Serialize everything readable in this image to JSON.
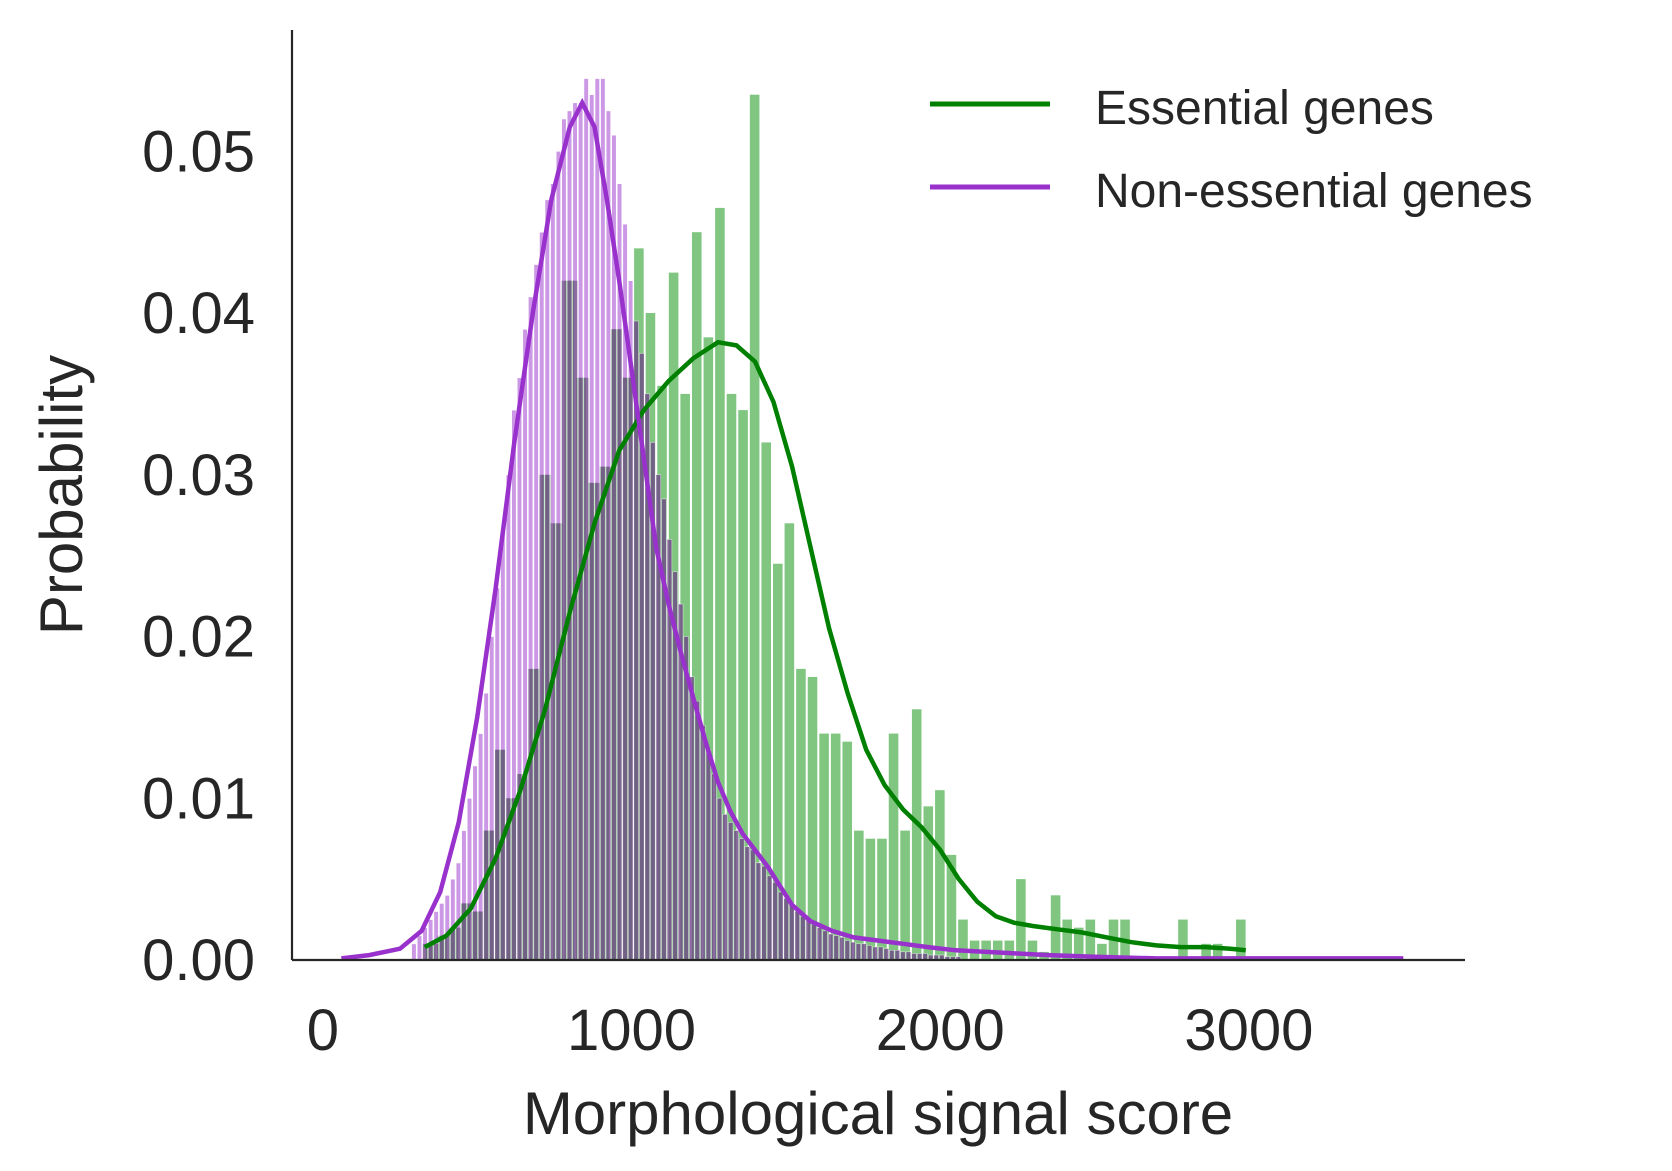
{
  "chart_data": {
    "type": "bar",
    "xlabel": "Morphological signal score",
    "ylabel": "Probability",
    "xlim": [
      -100,
      3700
    ],
    "ylim": [
      0,
      0.0575
    ],
    "xticks": [
      0,
      1000,
      2000,
      3000
    ],
    "xtick_labels": [
      "0",
      "1000",
      "2000",
      "3000"
    ],
    "yticks": [
      0,
      0.01,
      0.02,
      0.03,
      0.04,
      0.05
    ],
    "ytick_labels": [
      "0.00",
      "0.01",
      "0.02",
      "0.03",
      "0.04",
      "0.05"
    ],
    "grid": false,
    "legend_position": "top-right",
    "series": [
      {
        "name": "Essential genes",
        "color": "#008000",
        "bar_color": "#2ca02c",
        "bin_width": 37.5,
        "hist": [
          [
            330,
            0.001
          ],
          [
            367.5,
            0.0015
          ],
          [
            405,
            0.002
          ],
          [
            442.5,
            0.0035
          ],
          [
            480,
            0.003
          ],
          [
            517.5,
            0.008
          ],
          [
            555,
            0.013
          ],
          [
            592.5,
            0.01
          ],
          [
            630,
            0.0115
          ],
          [
            667.5,
            0.018
          ],
          [
            705,
            0.03
          ],
          [
            742.5,
            0.027
          ],
          [
            780,
            0.042
          ],
          [
            817.5,
            0.036
          ],
          [
            855,
            0.0295
          ],
          [
            892.5,
            0.0305
          ],
          [
            930,
            0.039
          ],
          [
            967.5,
            0.036
          ],
          [
            1005,
            0.044
          ],
          [
            1042.5,
            0.04
          ],
          [
            1080,
            0.0355
          ],
          [
            1117.5,
            0.0425
          ],
          [
            1155,
            0.035
          ],
          [
            1192.5,
            0.045
          ],
          [
            1230,
            0.0385
          ],
          [
            1267.5,
            0.0465
          ],
          [
            1305,
            0.035
          ],
          [
            1342.5,
            0.034
          ],
          [
            1380,
            0.0535
          ],
          [
            1417.5,
            0.032
          ],
          [
            1455,
            0.0245
          ],
          [
            1492.5,
            0.027
          ],
          [
            1530,
            0.018
          ],
          [
            1567.5,
            0.0175
          ],
          [
            1605,
            0.014
          ],
          [
            1642.5,
            0.014
          ],
          [
            1680,
            0.0135
          ],
          [
            1717.5,
            0.008
          ],
          [
            1755,
            0.0075
          ],
          [
            1792.5,
            0.0075
          ],
          [
            1830,
            0.014
          ],
          [
            1867.5,
            0.008
          ],
          [
            1905,
            0.0155
          ],
          [
            1942.5,
            0.0095
          ],
          [
            1980,
            0.0105
          ],
          [
            2017.5,
            0.0065
          ],
          [
            2055,
            0.0025
          ],
          [
            2092.5,
            0.0012
          ],
          [
            2130,
            0.0012
          ],
          [
            2167.5,
            0.0012
          ],
          [
            2205,
            0.0012
          ],
          [
            2242.5,
            0.005
          ],
          [
            2280,
            0.0012
          ],
          [
            2317.5,
            0.0005
          ],
          [
            2355,
            0.004
          ],
          [
            2392.5,
            0.0025
          ],
          [
            2430,
            0.002
          ],
          [
            2467.5,
            0.0025
          ],
          [
            2505,
            0.001
          ],
          [
            2542.5,
            0.0025
          ],
          [
            2580,
            0.0025
          ],
          [
            2767.5,
            0.0025
          ],
          [
            2842.5,
            0.001
          ],
          [
            2880,
            0.001
          ],
          [
            2955,
            0.0025
          ]
        ],
        "kde_x": [
          330,
          400,
          480,
          560,
          640,
          720,
          800,
          880,
          960,
          1040,
          1120,
          1200,
          1280,
          1340,
          1400,
          1460,
          1520,
          1580,
          1640,
          1700,
          1760,
          1820,
          1880,
          1940,
          2000,
          2060,
          2120,
          2180,
          2240,
          2300,
          2380,
          2460,
          2540,
          2620,
          2700,
          2780,
          2860,
          2940,
          2990
        ],
        "kde_y": [
          0.0008,
          0.0015,
          0.0032,
          0.0063,
          0.0105,
          0.0155,
          0.0215,
          0.027,
          0.0315,
          0.034,
          0.0358,
          0.0372,
          0.0382,
          0.038,
          0.037,
          0.0345,
          0.0305,
          0.0255,
          0.0205,
          0.0165,
          0.013,
          0.0108,
          0.0093,
          0.0082,
          0.0068,
          0.005,
          0.0036,
          0.0027,
          0.0023,
          0.0021,
          0.0019,
          0.0017,
          0.0014,
          0.0011,
          0.0009,
          0.0008,
          0.0008,
          0.0007,
          0.0006
        ]
      },
      {
        "name": "Non-essential genes",
        "color": "#9932CC",
        "bar_color": "#9932CC",
        "bin_width": 18,
        "hist": [
          [
            286,
            0.001
          ],
          [
            304,
            0.0015
          ],
          [
            322,
            0.002
          ],
          [
            340,
            0.0025
          ],
          [
            358,
            0.003
          ],
          [
            376,
            0.0035
          ],
          [
            394,
            0.004
          ],
          [
            412,
            0.005
          ],
          [
            430,
            0.006
          ],
          [
            448,
            0.008
          ],
          [
            466,
            0.01
          ],
          [
            484,
            0.012
          ],
          [
            502,
            0.014
          ],
          [
            520,
            0.0165
          ],
          [
            538,
            0.02
          ],
          [
            556,
            0.023
          ],
          [
            574,
            0.0265
          ],
          [
            592,
            0.03
          ],
          [
            610,
            0.034
          ],
          [
            628,
            0.036
          ],
          [
            646,
            0.039
          ],
          [
            664,
            0.041
          ],
          [
            682,
            0.043
          ],
          [
            700,
            0.045
          ],
          [
            718,
            0.047
          ],
          [
            736,
            0.048
          ],
          [
            754,
            0.05
          ],
          [
            772,
            0.052
          ],
          [
            790,
            0.0525
          ],
          [
            808,
            0.053
          ],
          [
            826,
            0.053
          ],
          [
            844,
            0.0545
          ],
          [
            862,
            0.0535
          ],
          [
            880,
            0.0545
          ],
          [
            898,
            0.0545
          ],
          [
            916,
            0.0525
          ],
          [
            934,
            0.051
          ],
          [
            952,
            0.048
          ],
          [
            970,
            0.0455
          ],
          [
            988,
            0.042
          ],
          [
            1006,
            0.0395
          ],
          [
            1024,
            0.0375
          ],
          [
            1042,
            0.035
          ],
          [
            1060,
            0.032
          ],
          [
            1078,
            0.03
          ],
          [
            1096,
            0.0285
          ],
          [
            1114,
            0.026
          ],
          [
            1132,
            0.024
          ],
          [
            1150,
            0.022
          ],
          [
            1168,
            0.02
          ],
          [
            1186,
            0.0175
          ],
          [
            1204,
            0.016
          ],
          [
            1222,
            0.0145
          ],
          [
            1240,
            0.013
          ],
          [
            1258,
            0.0115
          ],
          [
            1276,
            0.01
          ],
          [
            1294,
            0.009
          ],
          [
            1312,
            0.0085
          ],
          [
            1330,
            0.008
          ],
          [
            1348,
            0.0075
          ],
          [
            1366,
            0.007
          ],
          [
            1384,
            0.0068
          ],
          [
            1402,
            0.006
          ],
          [
            1420,
            0.0058
          ],
          [
            1438,
            0.0052
          ],
          [
            1456,
            0.0048
          ],
          [
            1474,
            0.0042
          ],
          [
            1492,
            0.0038
          ],
          [
            1510,
            0.0035
          ],
          [
            1528,
            0.003
          ],
          [
            1546,
            0.0027
          ],
          [
            1564,
            0.0025
          ],
          [
            1582,
            0.0022
          ],
          [
            1600,
            0.002
          ],
          [
            1618,
            0.0018
          ],
          [
            1636,
            0.0016
          ],
          [
            1654,
            0.0015
          ],
          [
            1672,
            0.0014
          ],
          [
            1690,
            0.0012
          ],
          [
            1708,
            0.0011
          ],
          [
            1726,
            0.001
          ],
          [
            1744,
            0.001
          ],
          [
            1762,
            0.0009
          ],
          [
            1780,
            0.0008
          ],
          [
            1798,
            0.0008
          ],
          [
            1816,
            0.0007
          ],
          [
            1834,
            0.0006
          ],
          [
            1852,
            0.0006
          ],
          [
            1870,
            0.0005
          ],
          [
            1888,
            0.0005
          ],
          [
            1906,
            0.0004
          ],
          [
            1924,
            0.0004
          ],
          [
            1942,
            0.0004
          ],
          [
            1960,
            0.0003
          ],
          [
            1978,
            0.0003
          ],
          [
            1996,
            0.0003
          ],
          [
            2014,
            0.0002
          ],
          [
            2032,
            0.0002
          ],
          [
            2050,
            0.0002
          ]
        ],
        "kde_x": [
          60,
          150,
          250,
          320,
          380,
          440,
          500,
          560,
          620,
          680,
          740,
          800,
          840,
          880,
          920,
          960,
          1000,
          1040,
          1080,
          1120,
          1160,
          1200,
          1240,
          1280,
          1320,
          1360,
          1400,
          1440,
          1480,
          1520,
          1580,
          1650,
          1720,
          1800,
          1880,
          1960,
          2050,
          2150,
          2250,
          2350,
          2500,
          2700,
          2900,
          3100,
          3300,
          3500
        ],
        "kde_y": [
          0.0001,
          0.0003,
          0.0007,
          0.0018,
          0.0042,
          0.0085,
          0.015,
          0.023,
          0.032,
          0.04,
          0.047,
          0.0515,
          0.053,
          0.0515,
          0.047,
          0.042,
          0.0365,
          0.031,
          0.0255,
          0.022,
          0.019,
          0.0162,
          0.0135,
          0.011,
          0.0092,
          0.0078,
          0.0068,
          0.0058,
          0.0046,
          0.0034,
          0.0024,
          0.0018,
          0.0014,
          0.0012,
          0.001,
          0.0008,
          0.0006,
          0.0005,
          0.0004,
          0.0003,
          0.0002,
          0.0001,
          0.0001,
          0.0001,
          0.0001,
          0.0001
        ]
      }
    ]
  }
}
